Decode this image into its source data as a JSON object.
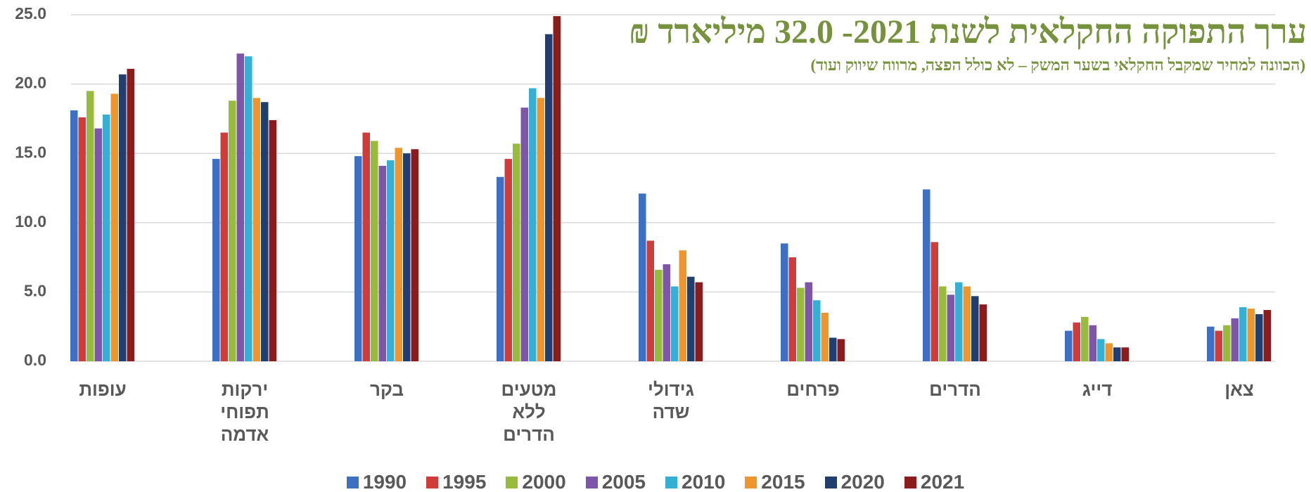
{
  "chart_data": {
    "type": "bar",
    "title": "ערך התפוקה החקלאית לשנת 2021- 32.0 מיליארד ₪",
    "subtitle": "(הכוונה למחיר שמקבל החקלאי בשער המשק – לא כולל הפצה, מרווח שיווק ועוד)",
    "categories": [
      "עופות",
      "ירקות תפוחי אדמה",
      "בקר",
      "מטעים ללא הדרים",
      "גידולי שדה",
      "פרחים",
      "הדרים",
      "דייג",
      "צאן"
    ],
    "series": [
      {
        "name": "1990",
        "color": "#3d6fc2",
        "values": [
          18.1,
          14.6,
          14.8,
          13.3,
          12.1,
          8.5,
          12.4,
          2.2,
          2.5
        ]
      },
      {
        "name": "1995",
        "color": "#d03c3a",
        "values": [
          17.6,
          16.5,
          16.5,
          14.6,
          8.7,
          7.5,
          8.6,
          2.8,
          2.2
        ]
      },
      {
        "name": "2000",
        "color": "#98bb3c",
        "values": [
          19.5,
          18.8,
          15.9,
          15.7,
          6.6,
          5.3,
          5.4,
          3.2,
          2.6
        ]
      },
      {
        "name": "2005",
        "color": "#7d56a9",
        "values": [
          16.8,
          22.2,
          14.1,
          18.3,
          7.0,
          5.7,
          4.8,
          2.6,
          3.1
        ]
      },
      {
        "name": "2010",
        "color": "#36b0d2",
        "values": [
          17.8,
          22.0,
          14.5,
          19.7,
          5.4,
          4.4,
          5.7,
          1.6,
          3.9
        ]
      },
      {
        "name": "2015",
        "color": "#f0952d",
        "values": [
          19.3,
          19.0,
          15.4,
          19.0,
          8.0,
          3.5,
          5.4,
          1.3,
          3.8
        ]
      },
      {
        "name": "2020",
        "color": "#203f70",
        "values": [
          20.7,
          18.7,
          15.0,
          23.6,
          6.1,
          1.7,
          4.7,
          1.0,
          3.4
        ]
      },
      {
        "name": "2021",
        "color": "#8c1c1c",
        "values": [
          21.1,
          17.4,
          15.3,
          24.9,
          5.7,
          1.6,
          4.1,
          1.0,
          3.7
        ]
      }
    ],
    "ylim": [
      0,
      25
    ],
    "yticks": [
      {
        "value": 0,
        "label": "0.0"
      },
      {
        "value": 5,
        "label": "5.0"
      },
      {
        "value": 10,
        "label": "10.0"
      },
      {
        "value": 15,
        "label": "15.0"
      },
      {
        "value": 20,
        "label": "20.0"
      },
      {
        "value": 25,
        "label": "25.0"
      }
    ],
    "grid": true
  }
}
